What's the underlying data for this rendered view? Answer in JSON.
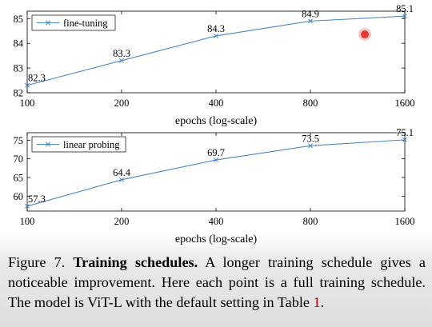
{
  "chart_data": [
    {
      "type": "line",
      "x": [
        100,
        200,
        400,
        800,
        1600
      ],
      "xticks": [
        "100",
        "200",
        "400",
        "800",
        "1600"
      ],
      "xscale": "log",
      "xlabel": "epochs (log-scale)",
      "ylabel": "",
      "title": "",
      "ylim": [
        82,
        85.3
      ],
      "yticks": [
        "82",
        "83",
        "84",
        "85"
      ],
      "grid": false,
      "legend": "top-left",
      "series": [
        {
          "name": "fine-tuning",
          "values": [
            82.3,
            83.3,
            84.3,
            84.9,
            85.1
          ],
          "labels": [
            "82.3",
            "83.3",
            "84.3",
            "84.9",
            "85.1"
          ],
          "color": "#4a86c8"
        }
      ]
    },
    {
      "type": "line",
      "x": [
        100,
        200,
        400,
        800,
        1600
      ],
      "xticks": [
        "100",
        "200",
        "400",
        "800",
        "1600"
      ],
      "xscale": "log",
      "xlabel": "epochs (log-scale)",
      "ylabel": "",
      "title": "",
      "ylim": [
        56,
        77
      ],
      "yticks": [
        "60",
        "65",
        "70",
        "75"
      ],
      "grid": false,
      "legend": "top-left",
      "series": [
        {
          "name": "linear probing",
          "values": [
            57.3,
            64.4,
            69.7,
            73.5,
            75.1
          ],
          "labels": [
            "57.3",
            "64.4",
            "69.7",
            "73.5",
            "75.1"
          ],
          "color": "#4a86c8"
        }
      ]
    }
  ],
  "caption": {
    "figure_label": "Figure 7.",
    "title": "Training schedules",
    "title_end": ".",
    "text": " A longer training schedule gives a noticeable improvement. Here each point is a full training schedule. The model is ViT-L with the default setting in Table ",
    "ref": "1",
    "end": "."
  }
}
